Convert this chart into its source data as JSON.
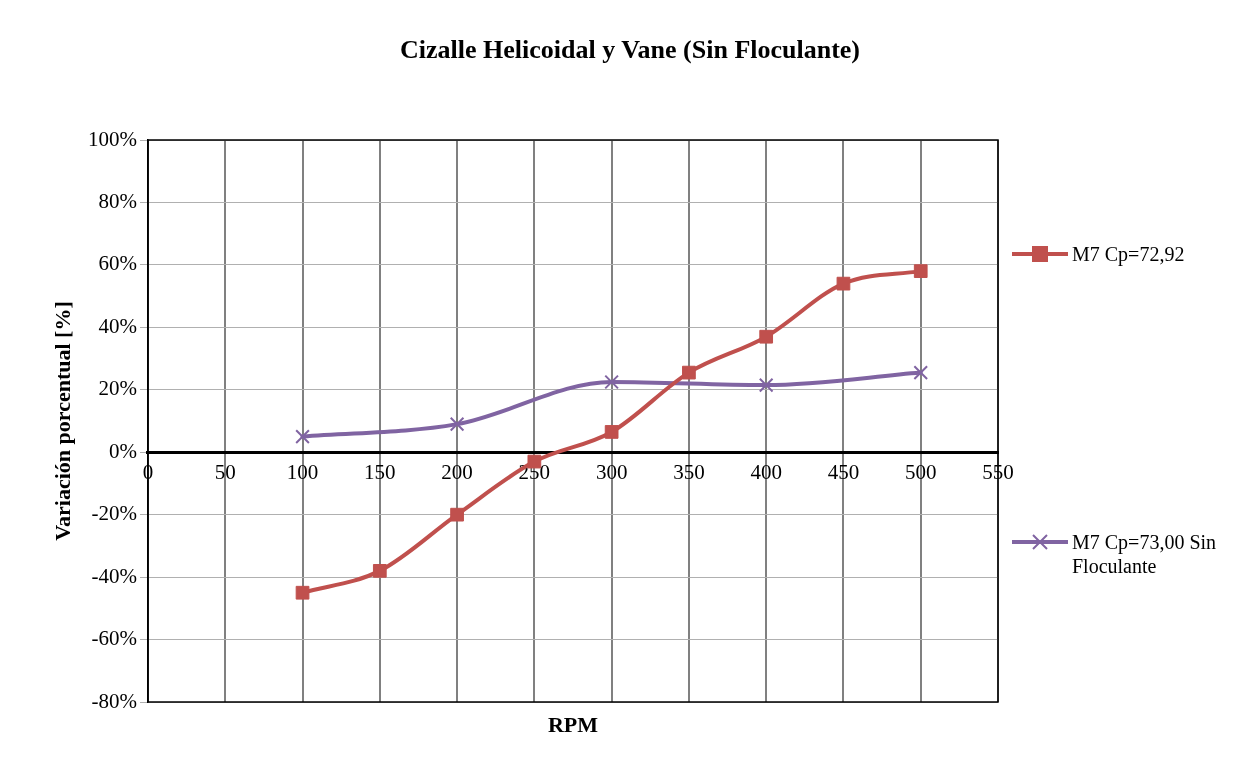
{
  "chart_data": {
    "type": "line",
    "title": "Cizalle Helicoidal y Vane (Sin Floculante)",
    "xlabel": "RPM",
    "ylabel": "Variación porcentual [%]",
    "xlim": [
      0,
      550
    ],
    "xticks": [
      0,
      50,
      100,
      150,
      200,
      250,
      300,
      350,
      400,
      450,
      500,
      550
    ],
    "ylim": [
      -80,
      100
    ],
    "yticks": [
      {
        "value": -80,
        "label": "-80%"
      },
      {
        "value": -60,
        "label": "-60%"
      },
      {
        "value": -40,
        "label": "-40%"
      },
      {
        "value": -20,
        "label": "-20%"
      },
      {
        "value": 0,
        "label": "0%"
      },
      {
        "value": 20,
        "label": "20%"
      },
      {
        "value": 40,
        "label": "40%"
      },
      {
        "value": 60,
        "label": "60%"
      },
      {
        "value": 80,
        "label": "80%"
      },
      {
        "value": 100,
        "label": "100%"
      }
    ],
    "grid": true,
    "legend": "right",
    "series": [
      {
        "name": "M7 Cp=72,92",
        "color": "#c0504d",
        "marker": "square",
        "x": [
          100,
          150,
          200,
          250,
          300,
          350,
          400,
          450,
          500
        ],
        "values": [
          -45,
          -38,
          -20,
          -3,
          6.5,
          25.5,
          37,
          54,
          58
        ]
      },
      {
        "name": "M7 Cp=73,00 Sin Floculante",
        "color": "#8064a2",
        "marker": "cross",
        "x": [
          100,
          200,
          300,
          400,
          500
        ],
        "values": [
          5,
          9,
          22.5,
          21.5,
          25.5
        ]
      }
    ]
  }
}
